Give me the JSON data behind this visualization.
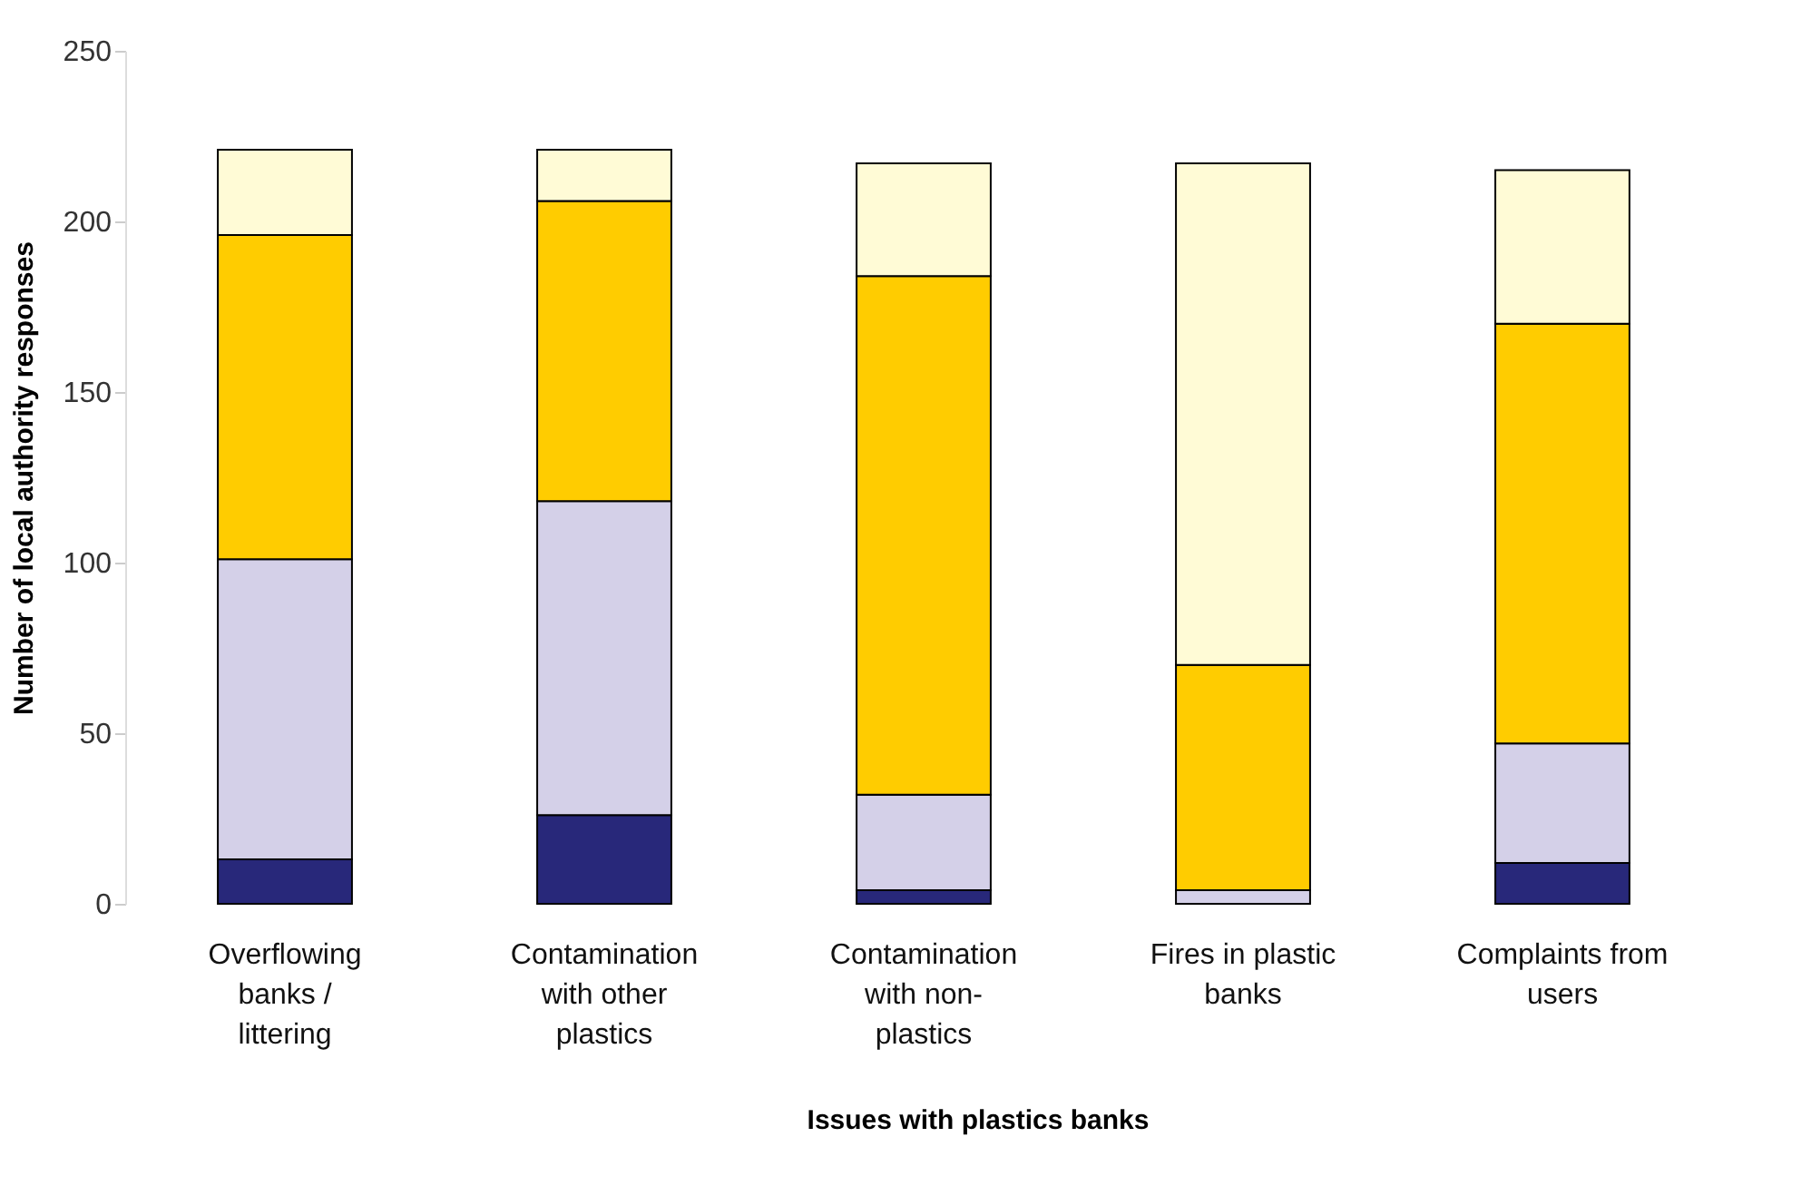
{
  "chart_data": {
    "type": "bar",
    "stacked": true,
    "xlabel": "Issues with plastics banks",
    "ylabel": "Number of local authority responses",
    "categories": [
      "Overflowing banks / littering",
      "Contamination with other plastics",
      "Contamination with non-plastics",
      "Fires in plastic banks",
      "Complaints from users"
    ],
    "series": [
      {
        "color": "#28287a",
        "values": [
          13,
          26,
          4,
          0,
          12
        ]
      },
      {
        "color": "#d4d0e8",
        "values": [
          88,
          92,
          28,
          4,
          35
        ]
      },
      {
        "color": "#ffcc00",
        "values": [
          95,
          88,
          152,
          66,
          123
        ]
      },
      {
        "color": "#fffbd6",
        "values": [
          25,
          15,
          33,
          147,
          45
        ]
      }
    ],
    "ylim": [
      0,
      250
    ],
    "yticks": [
      0,
      50,
      100,
      150,
      200,
      250
    ],
    "grid": false,
    "legend": false
  }
}
